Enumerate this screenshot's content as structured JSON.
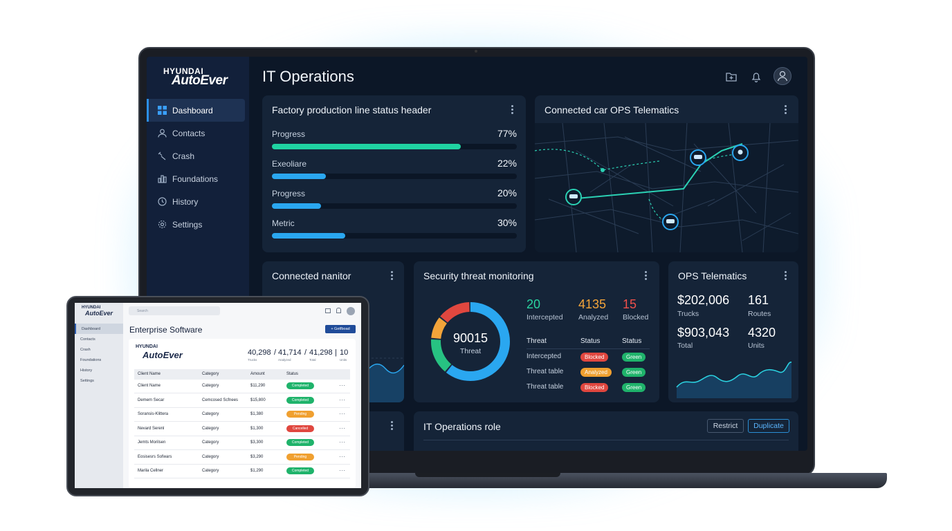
{
  "laptop": {
    "brand_top": "HYUNDAI",
    "brand_main": "AutoEver",
    "sidebar": {
      "items": [
        {
          "label": "Dashboard",
          "icon": "grid-icon",
          "active": true
        },
        {
          "label": "Contacts",
          "icon": "user-icon"
        },
        {
          "label": "Crash",
          "icon": "wrench-icon"
        },
        {
          "label": "Foundations",
          "icon": "bar-chart-icon"
        },
        {
          "label": "History",
          "icon": "history-icon"
        },
        {
          "label": "Settings",
          "icon": "gear-icon"
        }
      ]
    },
    "page_title": "IT Operations",
    "header_icons": [
      "folder-plus-icon",
      "bell-icon",
      "user-avatar-icon"
    ],
    "production_card": {
      "title": "Factory production line status header",
      "rows": [
        {
          "label": "Progress",
          "value": "77%",
          "fraction": 0.77,
          "color": "#1fd3a2"
        },
        {
          "label": "Exeoliare",
          "value": "22%",
          "fraction": 0.22,
          "color": "#2aa7f0"
        },
        {
          "label": "Progress",
          "value": "20%",
          "fraction": 0.2,
          "color": "#2aa7f0"
        },
        {
          "label": "Metric",
          "value": "30%",
          "fraction": 0.3,
          "color": "#2aa7f0"
        }
      ]
    },
    "map_card": {
      "title": "Connected car OPS Telematics"
    },
    "monitor_card": {
      "title": "Connected nanitor"
    },
    "security_card": {
      "title": "Security threat monitoring",
      "donut_value": "90015",
      "donut_label": "Threat",
      "stats": [
        {
          "value": "20",
          "label": "Intercepted",
          "color": "#2ad3a0"
        },
        {
          "value": "4135",
          "label": "Analyzed",
          "color": "#f3a43a"
        },
        {
          "value": "15",
          "label": "Blocked",
          "color": "#f0504b"
        }
      ],
      "table_headers": [
        "Threat",
        "Status",
        "Status"
      ],
      "table_rows": [
        {
          "threat": "Intercepted",
          "status": "Blocked",
          "status_color": "#e0473f",
          "status2": "Green"
        },
        {
          "threat": "Threat table",
          "status": "Analyzed",
          "status_color": "#f0a030",
          "status2": "Green"
        },
        {
          "threat": "Threat table",
          "status": "Blocked",
          "status_color": "#e0473f",
          "status2": "Green"
        }
      ]
    },
    "ops_card": {
      "title": "OPS Telematics",
      "stats": [
        {
          "value": "$202,006",
          "label": "Trucks"
        },
        {
          "value": "161",
          "label": "Routes"
        },
        {
          "value": "$903,043",
          "label": "Total"
        },
        {
          "value": "4320",
          "label": "Units"
        }
      ]
    },
    "role_card": {
      "title": "IT Operations role",
      "restrict_label": "Restrict",
      "duplicate_label": "Duplicate"
    }
  },
  "tablet": {
    "brand_top": "HYUNDAI",
    "brand_main": "AutoEver",
    "search_placeholder": "Search",
    "nav": [
      "Dashboard",
      "Contacts",
      "Crash",
      "Foundations",
      "History",
      "Settings"
    ],
    "title": "Enterprise Software",
    "button_label": "+ Getfboad",
    "card_brand_top": "HYUNDAI",
    "card_brand_main": "AutoEver",
    "summary": [
      {
        "value": "40,298",
        "label": "Trucks"
      },
      {
        "value": "41,714",
        "label": "Analyzed"
      },
      {
        "value": "41,298",
        "label": "Total"
      },
      {
        "value": "10",
        "label": "Units"
      }
    ],
    "table_headers": [
      "Client Name",
      "Category",
      "Amount",
      "Status"
    ],
    "rows": [
      {
        "name": "Client Name",
        "category": "Category",
        "amount": "$11,290",
        "status": "Completed",
        "color": "#1fb36b"
      },
      {
        "name": "Demem Secar",
        "category": "Cemcosed Scfnees",
        "amount": "$15,800",
        "status": "Completed",
        "color": "#1fb36b"
      },
      {
        "name": "Soransis-Klittera",
        "category": "Category",
        "amount": "$1,380",
        "status": "Pending",
        "color": "#f0a030"
      },
      {
        "name": "Nevard Serenl",
        "category": "Category",
        "amount": "$1,300",
        "status": "Cancelled",
        "color": "#e0473f"
      },
      {
        "name": "Jemts Morilsen",
        "category": "Category",
        "amount": "$3,300",
        "status": "Completed",
        "color": "#1fb36b"
      },
      {
        "name": "Eosisesrs Sofwars",
        "category": "Category",
        "amount": "$3,290",
        "status": "Pending",
        "color": "#f0a030"
      },
      {
        "name": "Marila Cellner",
        "category": "Category",
        "amount": "$1,290",
        "status": "Completed",
        "color": "#1fb36b"
      }
    ]
  }
}
